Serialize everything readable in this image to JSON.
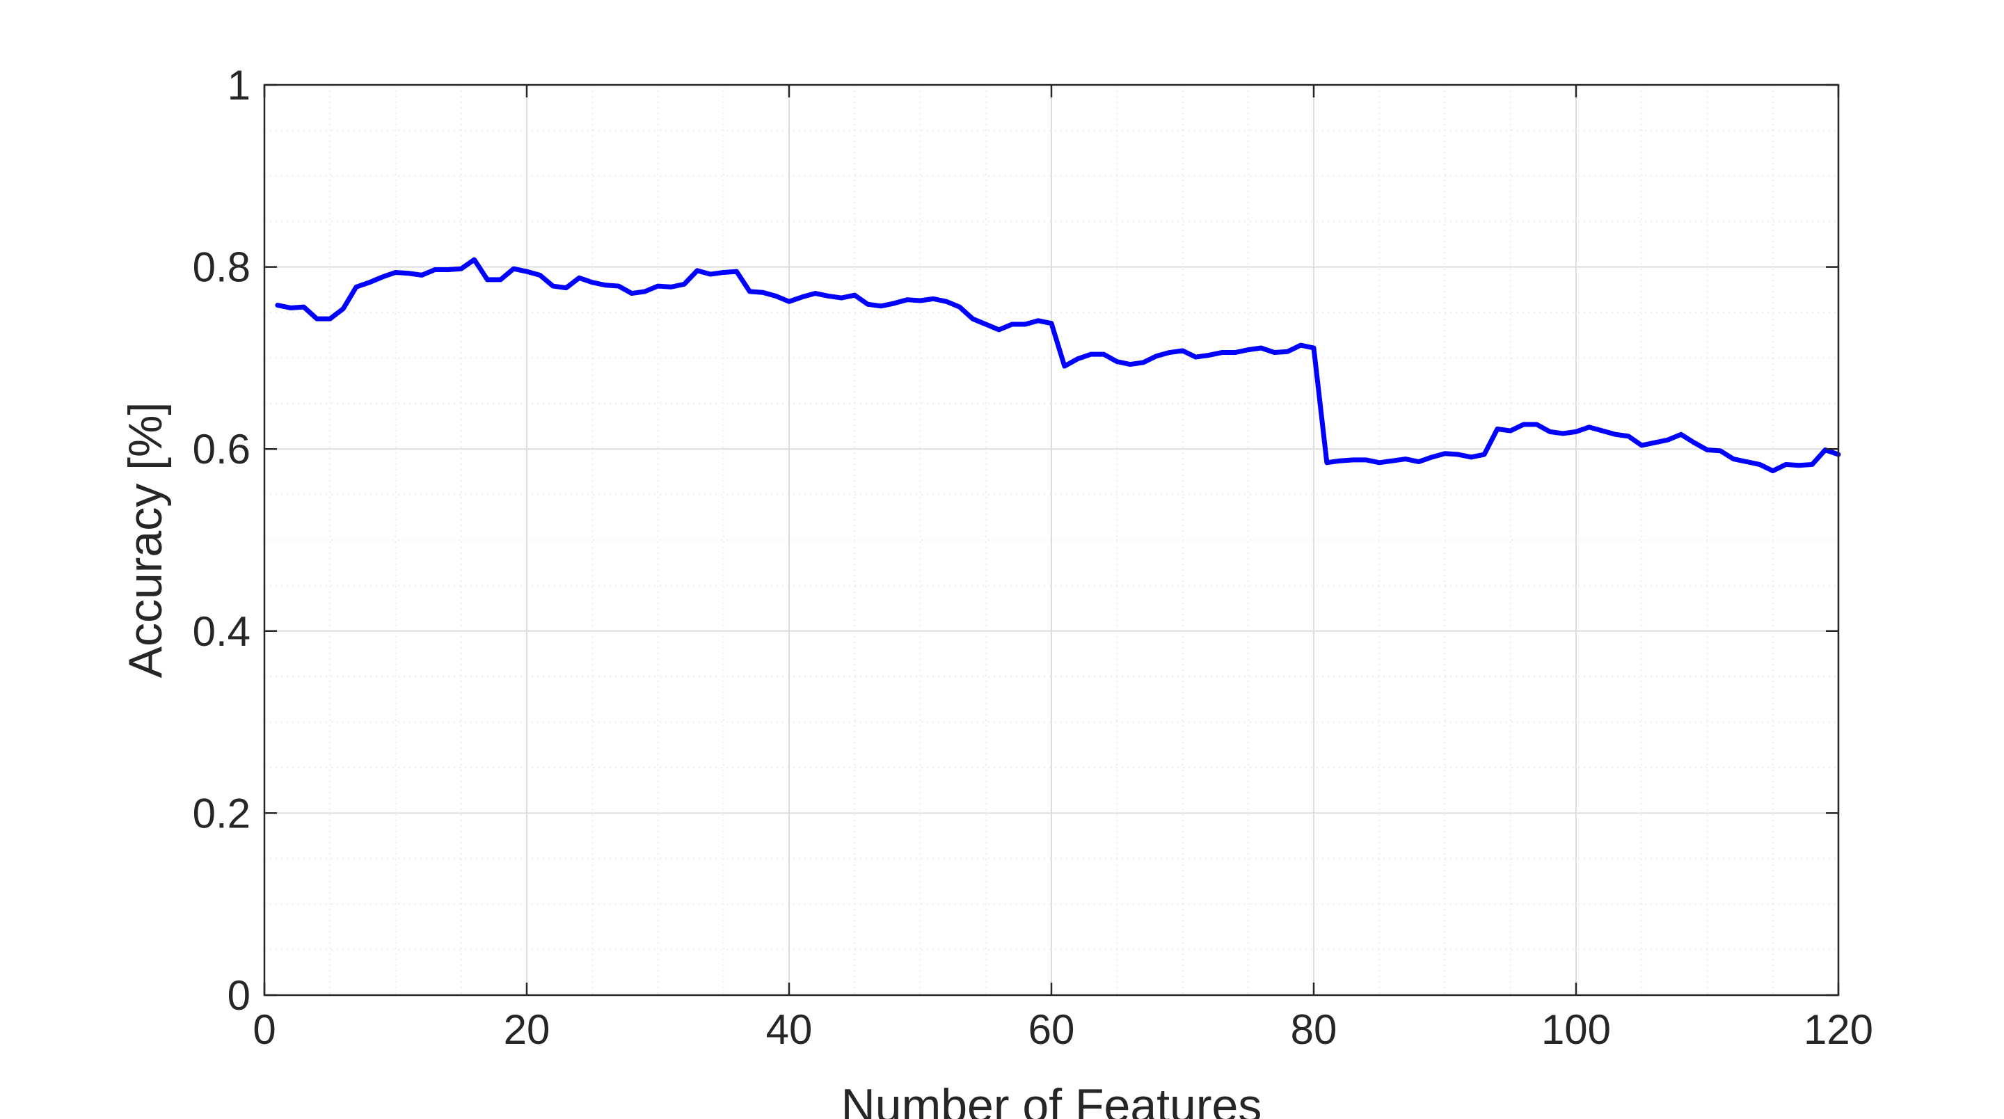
{
  "chart_data": {
    "type": "line",
    "title": "",
    "xlabel": "Number of Features",
    "ylabel": "Accuracy [%]",
    "xlim": [
      0,
      120
    ],
    "ylim": [
      0,
      1
    ],
    "x_ticks": [
      0,
      20,
      40,
      60,
      80,
      100,
      120
    ],
    "x_tick_labels": [
      "0",
      "20",
      "40",
      "60",
      "80",
      "100",
      "120"
    ],
    "y_ticks": [
      0,
      0.2,
      0.4,
      0.6,
      0.8,
      1
    ],
    "y_tick_labels": [
      "0",
      "0.2",
      "0.4",
      "0.6",
      "0.8",
      "1"
    ],
    "grid": true,
    "minor_grid": true,
    "line_color": "#0000ff",
    "series": [
      {
        "x": [
          1,
          2,
          3,
          4,
          5,
          6,
          7,
          8,
          9,
          10,
          11,
          12,
          13,
          14,
          15,
          16,
          17,
          18,
          19,
          20,
          21,
          22,
          23,
          24,
          25,
          26,
          27,
          28,
          29,
          30,
          31,
          32,
          33,
          34,
          35,
          36,
          37,
          38,
          39,
          40,
          41,
          42,
          43,
          44,
          45,
          46,
          47,
          48,
          49,
          50,
          51,
          52,
          53,
          54,
          55,
          56,
          57,
          58,
          59,
          60,
          61,
          62,
          63,
          64,
          65,
          66,
          67,
          68,
          69,
          70,
          71,
          72,
          73,
          74,
          75,
          76,
          77,
          78,
          79,
          80,
          81,
          82,
          83,
          84,
          85,
          86,
          87,
          88,
          89,
          90,
          91,
          92,
          93,
          94,
          95,
          96,
          97,
          98,
          99,
          100,
          101,
          102,
          103,
          104,
          105,
          106,
          107,
          108,
          109,
          110,
          111,
          112,
          113,
          114,
          115,
          116,
          117,
          118,
          119,
          120
        ],
        "values": [
          0.758,
          0.755,
          0.756,
          0.743,
          0.743,
          0.754,
          0.778,
          0.783,
          0.789,
          0.794,
          0.793,
          0.791,
          0.797,
          0.797,
          0.798,
          0.808,
          0.786,
          0.786,
          0.798,
          0.795,
          0.791,
          0.779,
          0.777,
          0.788,
          0.783,
          0.78,
          0.779,
          0.771,
          0.773,
          0.779,
          0.778,
          0.781,
          0.796,
          0.792,
          0.794,
          0.795,
          0.773,
          0.772,
          0.768,
          0.762,
          0.767,
          0.771,
          0.768,
          0.766,
          0.769,
          0.759,
          0.757,
          0.76,
          0.764,
          0.763,
          0.765,
          0.762,
          0.756,
          0.743,
          0.737,
          0.731,
          0.737,
          0.737,
          0.741,
          0.738,
          0.691,
          0.699,
          0.704,
          0.704,
          0.696,
          0.693,
          0.695,
          0.702,
          0.706,
          0.708,
          0.701,
          0.703,
          0.706,
          0.706,
          0.709,
          0.711,
          0.706,
          0.707,
          0.714,
          0.711,
          0.585,
          0.587,
          0.588,
          0.588,
          0.585,
          0.587,
          0.589,
          0.586,
          0.591,
          0.595,
          0.594,
          0.591,
          0.594,
          0.622,
          0.62,
          0.627,
          0.627,
          0.619,
          0.617,
          0.619,
          0.624,
          0.62,
          0.616,
          0.614,
          0.604,
          0.607,
          0.61,
          0.616,
          0.607,
          0.599,
          0.598,
          0.589,
          0.586,
          0.583,
          0.576,
          0.583,
          0.582,
          0.583,
          0.599,
          0.594
        ]
      }
    ]
  }
}
